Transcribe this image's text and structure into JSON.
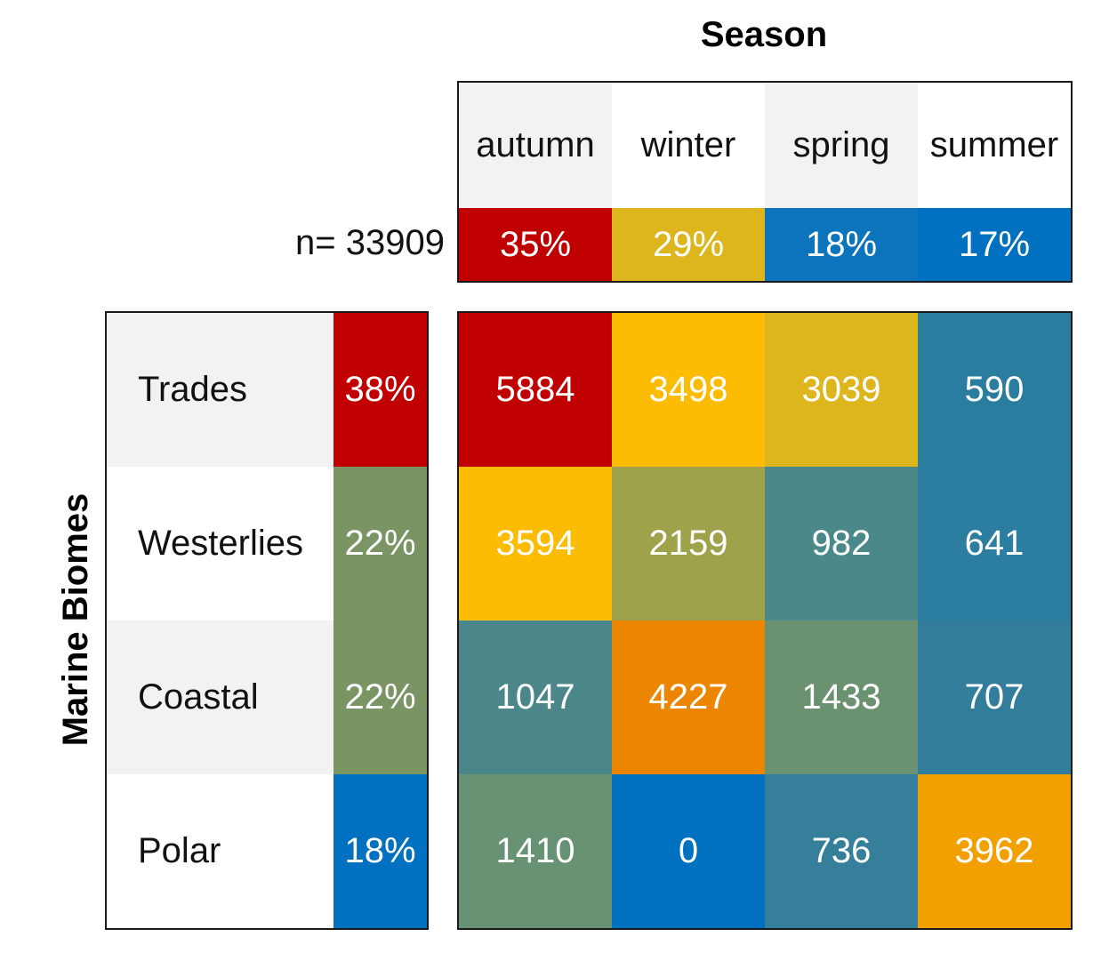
{
  "chart_data": {
    "type": "heatmap",
    "title": "Season",
    "ylabel": "Marine Biomes",
    "n_label": "n= 33909",
    "columns": [
      "autumn",
      "winter",
      "spring",
      "summer"
    ],
    "column_percents": [
      "35%",
      "29%",
      "18%",
      "17%"
    ],
    "column_colors": [
      "#c00000",
      "#ddb51c",
      "#0c74bd",
      "#0070c0"
    ],
    "column_header_backgrounds": [
      "#f2f2f2",
      "#ffffff",
      "#f2f2f2",
      "#ffffff"
    ],
    "rows": [
      "Trades",
      "Westerlies",
      "Coastal",
      "Polar"
    ],
    "row_percents": [
      "38%",
      "22%",
      "22%",
      "18%"
    ],
    "row_colors": [
      "#c00000",
      "#7a9563",
      "#7a9563",
      "#0070c0"
    ],
    "row_label_backgrounds": [
      "#f2f2f2",
      "#ffffff",
      "#f2f2f2",
      "#ffffff"
    ],
    "values": [
      [
        5884,
        3498,
        3039,
        590
      ],
      [
        3594,
        2159,
        982,
        641
      ],
      [
        1047,
        4227,
        1433,
        707
      ],
      [
        1410,
        0,
        736,
        3962
      ]
    ],
    "cell_colors": [
      [
        "#c00000",
        "#fcbc04",
        "#ddb51c",
        "#2b7da0"
      ],
      [
        "#fcbc04",
        "#9ea34b",
        "#4b888a",
        "#2c7ea0"
      ],
      [
        "#4b878a",
        "#ec8600",
        "#6a9271",
        "#327d9c"
      ],
      [
        "#679273",
        "#0070c0",
        "#357f9a",
        "#f2a000"
      ]
    ]
  }
}
